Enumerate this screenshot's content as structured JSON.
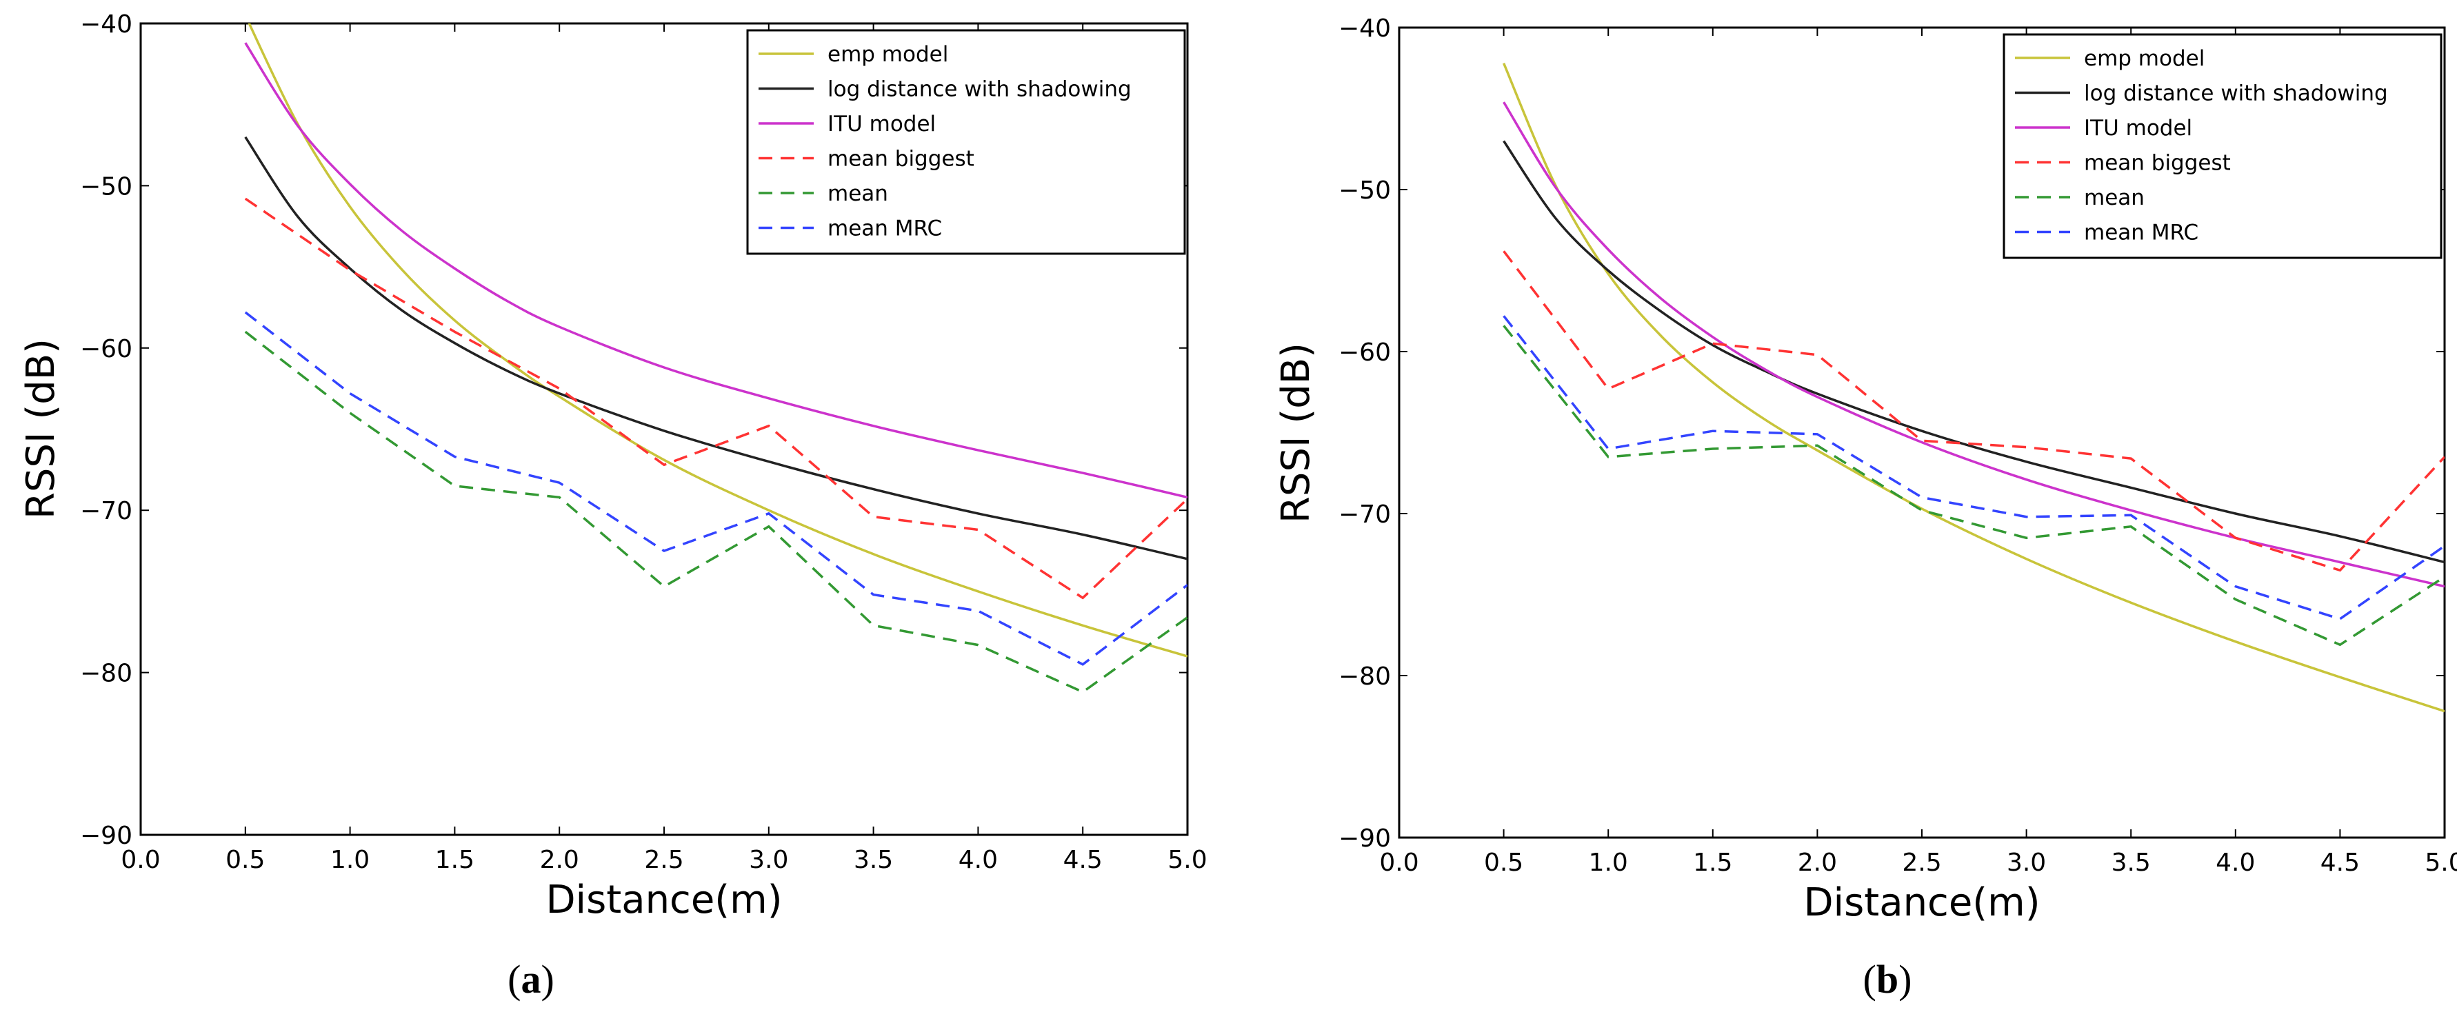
{
  "chart_data": [
    {
      "type": "line",
      "panel_label": "(a)",
      "panel_letter": "a",
      "xlabel": "Distance(m)",
      "ylabel": "RSSI (dB)",
      "xlim": [
        0.0,
        5.0
      ],
      "ylim": [
        -90,
        -40
      ],
      "xticks": [
        0.0,
        0.5,
        1.0,
        1.5,
        2.0,
        2.5,
        3.0,
        3.5,
        4.0,
        4.5,
        5.0
      ],
      "xtick_labels": [
        "0.0",
        "0.5",
        "1.0",
        "1.5",
        "2.0",
        "2.5",
        "3.0",
        "3.5",
        "4.0",
        "4.5",
        "5.0"
      ],
      "yticks": [
        -90,
        -80,
        -70,
        -60,
        -50,
        -40
      ],
      "ytick_labels": [
        "−90",
        "−80",
        "−70",
        "−60",
        "−50",
        "−40"
      ],
      "legend_position": "top-right",
      "series": [
        {
          "name": "emp model",
          "color": "#c8c43a",
          "style": "solid",
          "x": [
            0.5,
            0.75,
            1.0,
            1.25,
            1.5,
            1.75,
            2.0,
            2.5,
            3.0,
            3.5,
            4.0,
            4.5,
            5.0
          ],
          "y": [
            -39.5,
            -46.2,
            -51.3,
            -55.2,
            -58.3,
            -60.8,
            -63.0,
            -66.9,
            -70.0,
            -72.7,
            -75.0,
            -77.1,
            -79.0
          ]
        },
        {
          "name": "log distance with shadowing",
          "color": "#222222",
          "style": "solid",
          "x": [
            0.5,
            0.75,
            1.0,
            1.25,
            1.5,
            1.75,
            2.0,
            2.5,
            3.0,
            3.5,
            4.0,
            4.5,
            5.0
          ],
          "y": [
            -47.0,
            -51.9,
            -55.1,
            -57.7,
            -59.7,
            -61.4,
            -62.8,
            -65.1,
            -67.0,
            -68.7,
            -70.2,
            -71.5,
            -73.0
          ]
        },
        {
          "name": "ITU model",
          "color": "#cc33cc",
          "style": "solid",
          "x": [
            0.5,
            0.75,
            1.0,
            1.25,
            1.5,
            1.75,
            2.0,
            2.5,
            3.0,
            3.5,
            4.0,
            4.5,
            5.0
          ],
          "y": [
            -41.2,
            -46.3,
            -49.9,
            -52.8,
            -55.1,
            -57.1,
            -58.7,
            -61.2,
            -63.1,
            -64.8,
            -66.3,
            -67.7,
            -69.2
          ]
        },
        {
          "name": "mean biggest",
          "color": "#ff3333",
          "style": "dashed",
          "x": [
            0.5,
            1.0,
            1.5,
            2.0,
            2.5,
            3.0,
            3.5,
            4.0,
            4.5,
            5.0
          ],
          "y": [
            -50.8,
            -55.2,
            -59.0,
            -62.5,
            -67.2,
            -64.8,
            -70.4,
            -71.2,
            -75.4,
            -69.3
          ]
        },
        {
          "name": "mean",
          "color": "#339933",
          "style": "dashed",
          "x": [
            0.5,
            1.0,
            1.5,
            2.0,
            2.5,
            3.0,
            3.5,
            4.0,
            4.5,
            5.0
          ],
          "y": [
            -59.0,
            -64.0,
            -68.5,
            -69.2,
            -74.7,
            -71.0,
            -77.1,
            -78.3,
            -81.2,
            -76.6
          ]
        },
        {
          "name": "mean MRC",
          "color": "#3344ff",
          "style": "dashed",
          "x": [
            0.5,
            1.0,
            1.5,
            2.0,
            2.5,
            3.0,
            3.5,
            4.0,
            4.5,
            5.0
          ],
          "y": [
            -57.8,
            -62.8,
            -66.7,
            -68.3,
            -72.5,
            -70.2,
            -75.2,
            -76.2,
            -79.5,
            -74.6
          ]
        }
      ]
    },
    {
      "type": "line",
      "panel_label": "(b)",
      "panel_letter": "b",
      "xlabel": "Distance(m)",
      "ylabel": "RSSI (dB)",
      "xlim": [
        0.0,
        5.0
      ],
      "ylim": [
        -90,
        -40
      ],
      "xticks": [
        0.0,
        0.5,
        1.0,
        1.5,
        2.0,
        2.5,
        3.0,
        3.5,
        4.0,
        4.5,
        5.0
      ],
      "xtick_labels": [
        "0.0",
        "0.5",
        "1.0",
        "1.5",
        "2.0",
        "2.5",
        "3.0",
        "3.5",
        "4.0",
        "4.5",
        "5.0"
      ],
      "yticks": [
        -90,
        -80,
        -70,
        -60,
        -50,
        -40
      ],
      "ytick_labels": [
        "−90",
        "−80",
        "−70",
        "−60",
        "−50",
        "−40"
      ],
      "legend_position": "top-right",
      "series": [
        {
          "name": "emp model",
          "color": "#c8c43a",
          "style": "solid",
          "x": [
            0.5,
            0.75,
            1.0,
            1.25,
            1.5,
            1.75,
            2.0,
            2.5,
            3.0,
            3.5,
            4.0,
            4.5,
            5.0
          ],
          "y": [
            -42.2,
            -49.8,
            -55.2,
            -59.0,
            -61.9,
            -64.2,
            -66.1,
            -69.7,
            -72.8,
            -75.5,
            -77.9,
            -80.1,
            -82.2
          ]
        },
        {
          "name": "log distance with shadowing",
          "color": "#222222",
          "style": "solid",
          "x": [
            0.5,
            0.75,
            1.0,
            1.25,
            1.5,
            1.75,
            2.0,
            2.5,
            3.0,
            3.5,
            4.0,
            4.5,
            5.0
          ],
          "y": [
            -47.0,
            -51.8,
            -55.0,
            -57.5,
            -59.6,
            -61.2,
            -62.6,
            -64.9,
            -66.8,
            -68.4,
            -70.0,
            -71.4,
            -73.0
          ]
        },
        {
          "name": "ITU model",
          "color": "#cc33cc",
          "style": "solid",
          "x": [
            0.5,
            0.75,
            1.0,
            1.25,
            1.5,
            1.75,
            2.0,
            2.5,
            3.0,
            3.5,
            4.0,
            4.5,
            5.0
          ],
          "y": [
            -44.6,
            -49.9,
            -53.7,
            -56.7,
            -59.1,
            -61.1,
            -62.8,
            -65.6,
            -67.9,
            -69.8,
            -71.5,
            -73.0,
            -74.5
          ]
        },
        {
          "name": "mean biggest",
          "color": "#ff3333",
          "style": "dashed",
          "x": [
            0.5,
            1.0,
            1.5,
            2.0,
            2.5,
            3.0,
            3.5,
            4.0,
            4.5,
            5.0
          ],
          "y": [
            -53.8,
            -62.3,
            -59.5,
            -60.2,
            -65.5,
            -65.9,
            -66.6,
            -71.5,
            -73.5,
            -66.5
          ]
        },
        {
          "name": "mean",
          "color": "#339933",
          "style": "dashed",
          "x": [
            0.5,
            1.0,
            1.5,
            2.0,
            2.5,
            3.0,
            3.5,
            4.0,
            4.5,
            5.0
          ],
          "y": [
            -58.4,
            -66.5,
            -66.0,
            -65.8,
            -69.8,
            -71.5,
            -70.8,
            -75.3,
            -78.1,
            -73.9
          ]
        },
        {
          "name": "mean MRC",
          "color": "#3344ff",
          "style": "dashed",
          "x": [
            0.5,
            1.0,
            1.5,
            2.0,
            2.5,
            3.0,
            3.5,
            4.0,
            4.5,
            5.0
          ],
          "y": [
            -57.8,
            -66.0,
            -64.9,
            -65.1,
            -69.0,
            -70.2,
            -70.1,
            -74.5,
            -76.5,
            -72.0
          ]
        }
      ]
    }
  ]
}
